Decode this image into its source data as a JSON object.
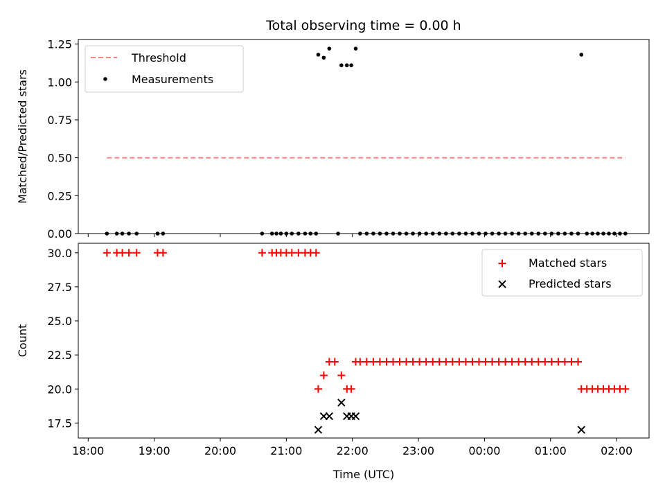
{
  "title": "Total observing time = 0.00 h",
  "xlabel": "Time (UTC)",
  "x_ticks": [
    "18:00",
    "19:00",
    "20:00",
    "21:00",
    "22:00",
    "23:00",
    "00:00",
    "01:00",
    "02:00"
  ],
  "colors": {
    "threshold": "#ff7f7f",
    "measurements": "#000000",
    "matched": "#ff0000",
    "predicted": "#000000"
  },
  "chart_data": [
    {
      "type": "scatter",
      "ylabel": "Matched/Predicted stars",
      "xlim": [
        "18:00",
        "02:30"
      ],
      "ylim": [
        0,
        1.28
      ],
      "y_ticks": [
        "0.00",
        "0.25",
        "0.50",
        "0.75",
        "1.00",
        "1.25"
      ],
      "legend_position": "top-left",
      "threshold": {
        "name": "Threshold",
        "value": 0.5,
        "x_start": "18:17",
        "x_end": "02:08"
      },
      "series": [
        {
          "name": "Measurements",
          "points": [
            [
              "18:17",
              0
            ],
            [
              "18:26",
              0
            ],
            [
              "18:31",
              0
            ],
            [
              "18:37",
              0
            ],
            [
              "18:44",
              0
            ],
            [
              "19:03",
              0
            ],
            [
              "19:08",
              0
            ],
            [
              "20:38",
              0
            ],
            [
              "20:47",
              0
            ],
            [
              "20:51",
              0
            ],
            [
              "20:55",
              0
            ],
            [
              "21:00",
              0
            ],
            [
              "21:05",
              0
            ],
            [
              "21:11",
              0
            ],
            [
              "21:17",
              0
            ],
            [
              "21:22",
              0
            ],
            [
              "21:27",
              0
            ],
            [
              "21:29",
              1.18
            ],
            [
              "21:34",
              1.16
            ],
            [
              "21:39",
              1.22
            ],
            [
              "21:47",
              0
            ],
            [
              "21:50",
              1.11
            ],
            [
              "21:55",
              1.11
            ],
            [
              "21:59",
              1.11
            ],
            [
              "22:03",
              1.22
            ],
            [
              "22:07",
              0
            ],
            [
              "22:13",
              0
            ],
            [
              "22:19",
              0
            ],
            [
              "22:25",
              0
            ],
            [
              "22:31",
              0
            ],
            [
              "22:37",
              0
            ],
            [
              "22:43",
              0
            ],
            [
              "22:49",
              0
            ],
            [
              "22:55",
              0
            ],
            [
              "23:01",
              0
            ],
            [
              "23:07",
              0
            ],
            [
              "23:13",
              0
            ],
            [
              "23:19",
              0
            ],
            [
              "23:25",
              0
            ],
            [
              "23:31",
              0
            ],
            [
              "23:37",
              0
            ],
            [
              "23:43",
              0
            ],
            [
              "23:49",
              0
            ],
            [
              "23:55",
              0
            ],
            [
              "00:01",
              0
            ],
            [
              "00:07",
              0
            ],
            [
              "00:13",
              0
            ],
            [
              "00:19",
              0
            ],
            [
              "00:25",
              0
            ],
            [
              "00:31",
              0
            ],
            [
              "00:37",
              0
            ],
            [
              "00:43",
              0
            ],
            [
              "00:49",
              0
            ],
            [
              "00:55",
              0
            ],
            [
              "01:01",
              0
            ],
            [
              "01:07",
              0
            ],
            [
              "01:13",
              0
            ],
            [
              "01:19",
              0
            ],
            [
              "01:25",
              0
            ],
            [
              "01:28",
              1.18
            ],
            [
              "01:33",
              0
            ],
            [
              "01:38",
              0
            ],
            [
              "01:43",
              0
            ],
            [
              "01:48",
              0
            ],
            [
              "01:53",
              0
            ],
            [
              "01:58",
              0
            ],
            [
              "02:03",
              0
            ],
            [
              "02:08",
              0
            ]
          ]
        }
      ]
    },
    {
      "type": "scatter",
      "ylabel": "Count",
      "xlim": [
        "18:00",
        "02:30"
      ],
      "ylim": [
        16.4,
        30.7
      ],
      "y_ticks": [
        "17.5",
        "20.0",
        "22.5",
        "25.0",
        "27.5",
        "30.0"
      ],
      "legend_position": "top-right",
      "series": [
        {
          "name": "Matched stars",
          "marker": "plus",
          "points": [
            [
              "18:17",
              30
            ],
            [
              "18:26",
              30
            ],
            [
              "18:31",
              30
            ],
            [
              "18:37",
              30
            ],
            [
              "18:44",
              30
            ],
            [
              "19:03",
              30
            ],
            [
              "19:08",
              30
            ],
            [
              "20:38",
              30
            ],
            [
              "20:47",
              30
            ],
            [
              "20:51",
              30
            ],
            [
              "20:55",
              30
            ],
            [
              "21:00",
              30
            ],
            [
              "21:05",
              30
            ],
            [
              "21:11",
              30
            ],
            [
              "21:17",
              30
            ],
            [
              "21:22",
              30
            ],
            [
              "21:27",
              30
            ],
            [
              "21:29",
              20
            ],
            [
              "21:34",
              21
            ],
            [
              "21:39",
              22
            ],
            [
              "21:44",
              22
            ],
            [
              "21:50",
              21
            ],
            [
              "21:55",
              20
            ],
            [
              "21:59",
              20
            ],
            [
              "22:03",
              22
            ],
            [
              "22:07",
              22
            ],
            [
              "22:13",
              22
            ],
            [
              "22:19",
              22
            ],
            [
              "22:25",
              22
            ],
            [
              "22:31",
              22
            ],
            [
              "22:37",
              22
            ],
            [
              "22:43",
              22
            ],
            [
              "22:49",
              22
            ],
            [
              "22:55",
              22
            ],
            [
              "23:01",
              22
            ],
            [
              "23:07",
              22
            ],
            [
              "23:13",
              22
            ],
            [
              "23:19",
              22
            ],
            [
              "23:25",
              22
            ],
            [
              "23:31",
              22
            ],
            [
              "23:37",
              22
            ],
            [
              "23:43",
              22
            ],
            [
              "23:49",
              22
            ],
            [
              "23:55",
              22
            ],
            [
              "00:01",
              22
            ],
            [
              "00:07",
              22
            ],
            [
              "00:13",
              22
            ],
            [
              "00:19",
              22
            ],
            [
              "00:25",
              22
            ],
            [
              "00:31",
              22
            ],
            [
              "00:37",
              22
            ],
            [
              "00:43",
              22
            ],
            [
              "00:49",
              22
            ],
            [
              "00:55",
              22
            ],
            [
              "01:01",
              22
            ],
            [
              "01:07",
              22
            ],
            [
              "01:13",
              22
            ],
            [
              "01:19",
              22
            ],
            [
              "01:25",
              22
            ],
            [
              "01:28",
              20
            ],
            [
              "01:33",
              20
            ],
            [
              "01:38",
              20
            ],
            [
              "01:43",
              20
            ],
            [
              "01:48",
              20
            ],
            [
              "01:53",
              20
            ],
            [
              "01:58",
              20
            ],
            [
              "02:03",
              20
            ],
            [
              "02:08",
              20
            ]
          ]
        },
        {
          "name": "Predicted stars",
          "marker": "x",
          "points": [
            [
              "21:29",
              17
            ],
            [
              "21:34",
              18
            ],
            [
              "21:39",
              18
            ],
            [
              "21:50",
              19
            ],
            [
              "21:55",
              18
            ],
            [
              "21:59",
              18
            ],
            [
              "22:03",
              18
            ],
            [
              "01:28",
              17
            ]
          ]
        }
      ]
    }
  ]
}
